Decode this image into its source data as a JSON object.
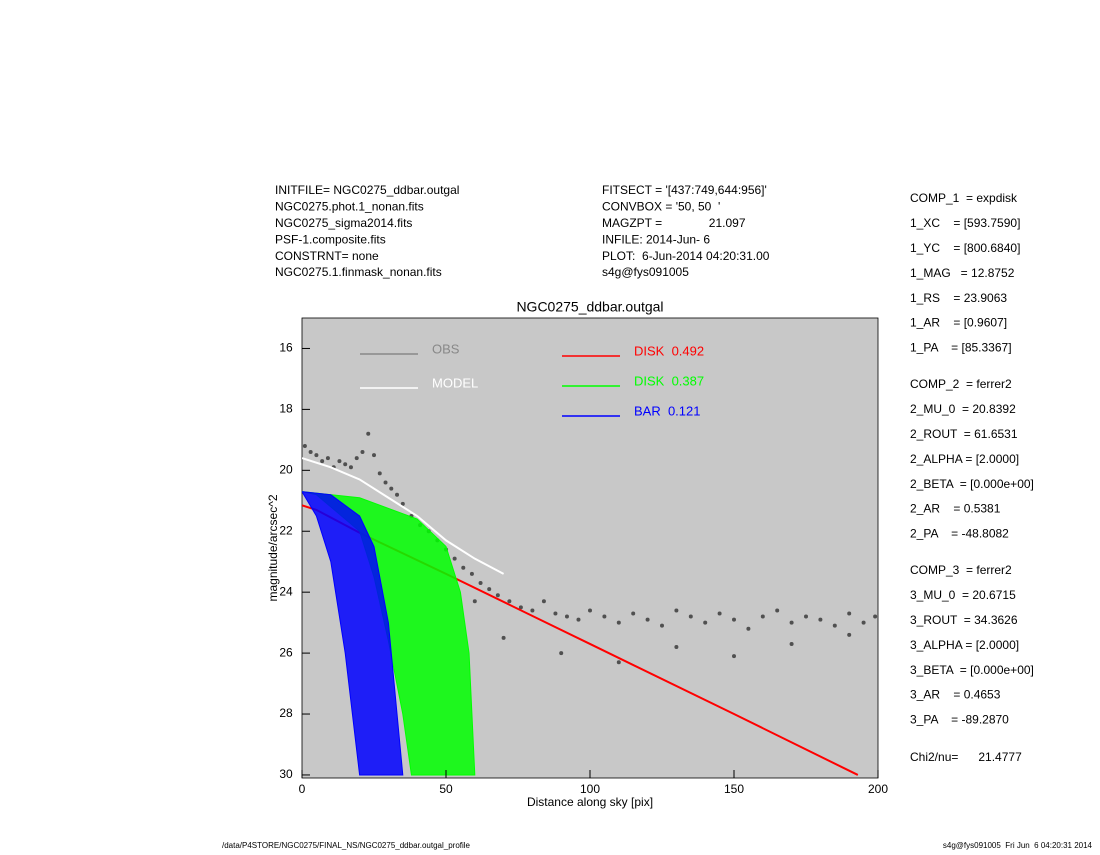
{
  "header": {
    "left": [
      "INITFILE= NGC0275_ddbar.outgal",
      "NGC0275.phot.1_nonan.fits",
      "NGC0275_sigma2014.fits",
      "PSF-1.composite.fits",
      "CONSTRNT= none",
      "NGC0275.1.finmask_nonan.fits"
    ],
    "middle": [
      "FITSECT = '[437:749,644:956]'",
      "CONVBOX = '50, 50  '",
      "MAGZPT =              21.097",
      "INFILE: 2014-Jun- 6",
      "PLOT:  6-Jun-2014 04:20:31.00",
      "s4g@fys091005"
    ]
  },
  "parameters": [
    [
      "COMP_1  = expdisk",
      "1_XC    = [593.7590]",
      "1_YC    = [800.6840]",
      "1_MAG   = 12.8752",
      "1_RS    = 23.9063",
      "1_AR    = [0.9607]",
      "1_PA    = [85.3367]"
    ],
    [
      "COMP_2  = ferrer2",
      "2_MU_0  = 20.8392",
      "2_ROUT  = 61.6531",
      "2_ALPHA = [2.0000]",
      "2_BETA  = [0.000e+00]",
      "2_AR    = 0.5381",
      "2_PA    = -48.8082"
    ],
    [
      "COMP_3  = ferrer2",
      "3_MU_0  = 20.6715",
      "3_ROUT  = 34.3626",
      "3_ALPHA = [2.0000]",
      "3_BETA  = [0.000e+00]",
      "3_AR    = 0.4653",
      "3_PA    = -89.2870"
    ],
    [
      "Chi2/nu=      21.4777"
    ]
  ],
  "footer": {
    "left": "/data/P4STORE/NGC0275/FINAL_NS/NGC0275_ddbar.outgal_profile",
    "right": "s4g@fys091005  Fri Jun  6 04:20:31 2014"
  },
  "chart_data": {
    "type": "scatter",
    "title": "NGC0275_ddbar.outgal",
    "x_label": "Distance along sky [pix]",
    "y_label": "magnitude/arcsec^2",
    "xlim": [
      0,
      200
    ],
    "xticks": [
      0,
      50,
      100,
      150,
      200
    ],
    "ylim": [
      15,
      30.1
    ],
    "yticks": [
      16,
      18,
      20,
      22,
      24,
      26,
      28,
      30
    ],
    "y_inverted": true,
    "background": "#c8c8c8",
    "series": [
      {
        "name": "OBS",
        "color": "#888888",
        "mark_color": "#505050",
        "mode": "points",
        "x": [
          1,
          3,
          5,
          7,
          9,
          11,
          13,
          15,
          17,
          19,
          21,
          23,
          25,
          27,
          29,
          31,
          33,
          35,
          38,
          41,
          44,
          47,
          50,
          53,
          56,
          59,
          62,
          65,
          68,
          72,
          76,
          80,
          84,
          88,
          92,
          96,
          100,
          105,
          110,
          115,
          120,
          125,
          130,
          135,
          140,
          145,
          150,
          155,
          160,
          165,
          170,
          175,
          180,
          185,
          190,
          195,
          199,
          60,
          70,
          90,
          110,
          130,
          150,
          170,
          190
        ],
        "values": [
          19.2,
          19.4,
          19.5,
          19.7,
          19.6,
          19.9,
          19.7,
          19.8,
          19.9,
          19.6,
          19.4,
          18.8,
          19.5,
          20.1,
          20.4,
          20.6,
          20.8,
          21.1,
          21.5,
          21.8,
          22.0,
          22.3,
          22.6,
          22.9,
          23.2,
          23.4,
          23.7,
          23.9,
          24.1,
          24.3,
          24.5,
          24.6,
          24.3,
          24.7,
          24.8,
          24.9,
          24.6,
          24.8,
          25.0,
          24.7,
          24.9,
          25.1,
          24.6,
          24.8,
          25.0,
          24.7,
          24.9,
          25.2,
          24.8,
          24.6,
          25.0,
          24.8,
          24.9,
          25.1,
          24.7,
          25.0,
          24.8,
          24.3,
          25.5,
          26.0,
          26.3,
          25.8,
          26.1,
          25.7,
          25.4
        ]
      },
      {
        "name": "MODEL",
        "color": "#ffffff",
        "mode": "line",
        "x": [
          0,
          10,
          20,
          30,
          40,
          50,
          60,
          70
        ],
        "values": [
          19.6,
          19.9,
          20.3,
          20.9,
          21.5,
          22.3,
          22.9,
          23.4
        ]
      },
      {
        "name": "DISK  0.492",
        "color": "#ff0000",
        "mode": "line",
        "x": [
          0,
          5,
          10,
          20,
          50,
          100,
          150,
          193
        ],
        "values": [
          21.15,
          21.3,
          21.55,
          22.05,
          23.4,
          25.7,
          28.0,
          30.0
        ]
      },
      {
        "name": "DISK  0.387",
        "color": "#00ff00",
        "mode": "band",
        "x": [
          0,
          20,
          40,
          50,
          55,
          58,
          60
        ],
        "values": [
          20.7,
          20.9,
          21.6,
          22.5,
          24,
          26,
          30
        ],
        "x_inner": [
          5,
          20,
          25,
          30,
          35,
          38
        ],
        "values_inner": [
          20.8,
          22,
          23.5,
          25.6,
          28,
          30
        ]
      },
      {
        "name": "BAR  0.121",
        "color": "#0000ff",
        "mode": "band",
        "x": [
          0,
          10,
          20,
          25,
          30,
          33,
          35
        ],
        "values": [
          20.7,
          20.8,
          21.5,
          22.5,
          25,
          28,
          30
        ],
        "x_inner": [
          0,
          5,
          10,
          15,
          20
        ],
        "values_inner": [
          20.7,
          21.5,
          23,
          26,
          30
        ]
      }
    ]
  }
}
